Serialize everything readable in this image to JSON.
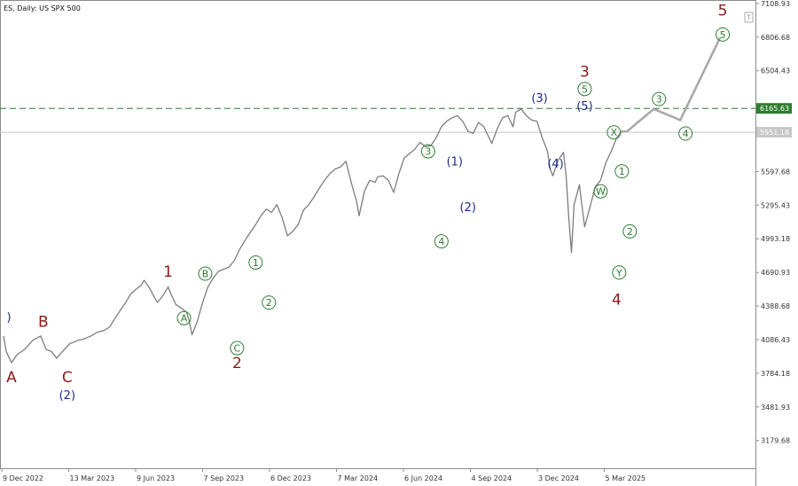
{
  "header": {
    "symbol_title": "ES, Daily:  US SPX 500"
  },
  "chart_data": {
    "type": "line",
    "title": "ES, Daily:  US SPX 500",
    "ylim": [
      2930,
      7140
    ],
    "x_ticks": [
      "9 Dec 2022",
      "13 Mar 2023",
      "9 Jun 2023",
      "7 Sep 2023",
      "6 Dec 2023",
      "7 Mar 2024",
      "6 Jun 2024",
      "4 Sep 2024",
      "3 Dec 2024",
      "5 Mar 2025"
    ],
    "y_ticks": [
      3179.68,
      3481.93,
      3784.18,
      4086.43,
      4388.68,
      4690.93,
      4993.18,
      5295.43,
      5597.68,
      6504.43,
      6806.68,
      7108.93
    ],
    "price_series": [
      [
        0,
        4120
      ],
      [
        1,
        3980
      ],
      [
        3,
        3880
      ],
      [
        5,
        3950
      ],
      [
        8,
        4000
      ],
      [
        11,
        4080
      ],
      [
        14,
        4120
      ],
      [
        16,
        4000
      ],
      [
        18,
        3980
      ],
      [
        20,
        3920
      ],
      [
        23,
        4000
      ],
      [
        25,
        4050
      ],
      [
        28,
        4080
      ],
      [
        30,
        4090
      ],
      [
        33,
        4120
      ],
      [
        35,
        4150
      ],
      [
        38,
        4170
      ],
      [
        40,
        4200
      ],
      [
        42,
        4280
      ],
      [
        44,
        4350
      ],
      [
        46,
        4420
      ],
      [
        48,
        4500
      ],
      [
        50,
        4540
      ],
      [
        52,
        4580
      ],
      [
        53,
        4620
      ],
      [
        55,
        4550
      ],
      [
        57,
        4460
      ],
      [
        58,
        4420
      ],
      [
        60,
        4480
      ],
      [
        62,
        4560
      ],
      [
        63,
        4500
      ],
      [
        65,
        4400
      ],
      [
        67,
        4370
      ],
      [
        69,
        4330
      ],
      [
        70,
        4250
      ],
      [
        71,
        4130
      ],
      [
        73,
        4250
      ],
      [
        75,
        4420
      ],
      [
        77,
        4560
      ],
      [
        79,
        4640
      ],
      [
        81,
        4700
      ],
      [
        83,
        4720
      ],
      [
        85,
        4740
      ],
      [
        87,
        4800
      ],
      [
        89,
        4900
      ],
      [
        91,
        4980
      ],
      [
        93,
        5050
      ],
      [
        95,
        5120
      ],
      [
        97,
        5200
      ],
      [
        99,
        5260
      ],
      [
        101,
        5230
      ],
      [
        103,
        5300
      ],
      [
        105,
        5180
      ],
      [
        107,
        5020
      ],
      [
        109,
        5060
      ],
      [
        111,
        5120
      ],
      [
        113,
        5250
      ],
      [
        115,
        5300
      ],
      [
        117,
        5370
      ],
      [
        119,
        5450
      ],
      [
        121,
        5520
      ],
      [
        123,
        5580
      ],
      [
        125,
        5620
      ],
      [
        127,
        5640
      ],
      [
        129,
        5690
      ],
      [
        131,
        5500
      ],
      [
        133,
        5330
      ],
      [
        134,
        5200
      ],
      [
        136,
        5420
      ],
      [
        138,
        5520
      ],
      [
        140,
        5500
      ],
      [
        141,
        5550
      ],
      [
        143,
        5560
      ],
      [
        145,
        5520
      ],
      [
        147,
        5410
      ],
      [
        149,
        5580
      ],
      [
        151,
        5720
      ],
      [
        153,
        5760
      ],
      [
        155,
        5800
      ],
      [
        157,
        5860
      ],
      [
        159,
        5820
      ],
      [
        161,
        5830
      ],
      [
        163,
        5900
      ],
      [
        165,
        6000
      ],
      [
        167,
        6050
      ],
      [
        169,
        6080
      ],
      [
        171,
        6100
      ],
      [
        173,
        6050
      ],
      [
        175,
        5960
      ],
      [
        177,
        5940
      ],
      [
        179,
        6040
      ],
      [
        181,
        6000
      ],
      [
        183,
        5900
      ],
      [
        184,
        5850
      ],
      [
        186,
        5980
      ],
      [
        188,
        6080
      ],
      [
        190,
        6100
      ],
      [
        192,
        6000
      ],
      [
        193,
        6130
      ],
      [
        195,
        6160
      ],
      [
        197,
        6100
      ],
      [
        199,
        6060
      ],
      [
        201,
        6050
      ],
      [
        203,
        5900
      ],
      [
        205,
        5780
      ],
      [
        206,
        5620
      ],
      [
        207,
        5560
      ],
      [
        209,
        5700
      ],
      [
        211,
        5770
      ],
      [
        212,
        5560
      ],
      [
        213,
        5180
      ],
      [
        214,
        4870
      ],
      [
        215,
        5300
      ],
      [
        217,
        5480
      ],
      [
        218,
        5280
      ],
      [
        219,
        5100
      ],
      [
        221,
        5280
      ],
      [
        223,
        5460
      ],
      [
        225,
        5520
      ],
      [
        227,
        5680
      ],
      [
        229,
        5780
      ],
      [
        231,
        5900
      ],
      [
        233,
        5960
      ],
      [
        235,
        5960
      ]
    ],
    "forecast_path": [
      [
        235,
        5960
      ],
      [
        245,
        6160
      ],
      [
        255,
        6060
      ],
      [
        270,
        6800
      ]
    ],
    "horizontal_lines": [
      {
        "price": 6165.63,
        "label": "6165.63",
        "style": "dashed",
        "color": "#2e7d32"
      },
      {
        "price": 5951.18,
        "label": "5951.18",
        "style": "solid",
        "color": "#c8c8c8"
      }
    ],
    "wave_labels": [
      {
        "text": ")",
        "x": 2,
        "y": 4300,
        "color": "#1f2a8a",
        "style": "plain"
      },
      {
        "text": "A",
        "x": 3,
        "y": 3750,
        "color": "#8b1a1a",
        "style": "plain"
      },
      {
        "text": "B",
        "x": 15,
        "y": 4250,
        "color": "#8b1a1a",
        "style": "plain"
      },
      {
        "text": "C",
        "x": 24,
        "y": 3750,
        "color": "#8b1a1a",
        "style": "plain"
      },
      {
        "text": "(2)",
        "x": 24,
        "y": 3600,
        "color": "#1f2a8a",
        "style": "plain"
      },
      {
        "text": "1",
        "x": 62,
        "y": 4700,
        "color": "#8b1a1a",
        "style": "plain"
      },
      {
        "text": "A",
        "x": 68,
        "y": 4280,
        "color": "#2e7d32",
        "style": "circle"
      },
      {
        "text": "B",
        "x": 76,
        "y": 4680,
        "color": "#2e7d32",
        "style": "circle"
      },
      {
        "text": "C",
        "x": 88,
        "y": 4010,
        "color": "#2e7d32",
        "style": "circle"
      },
      {
        "text": "2",
        "x": 88,
        "y": 3880,
        "color": "#8b1a1a",
        "style": "plain"
      },
      {
        "text": "1",
        "x": 95,
        "y": 4780,
        "color": "#2e7d32",
        "style": "circle"
      },
      {
        "text": "2",
        "x": 100,
        "y": 4420,
        "color": "#2e7d32",
        "style": "circle"
      },
      {
        "text": "3",
        "x": 160,
        "y": 5780,
        "color": "#2e7d32",
        "style": "circle"
      },
      {
        "text": "(1)",
        "x": 170,
        "y": 5700,
        "color": "#1f2a8a",
        "style": "plain"
      },
      {
        "text": "(2)",
        "x": 175,
        "y": 5290,
        "color": "#1f2a8a",
        "style": "plain"
      },
      {
        "text": "4",
        "x": 165,
        "y": 4970,
        "color": "#2e7d32",
        "style": "circle"
      },
      {
        "text": "(3)",
        "x": 202,
        "y": 6270,
        "color": "#1f2a8a",
        "style": "plain"
      },
      {
        "text": "3",
        "x": 219,
        "y": 6500,
        "color": "#8b1a1a",
        "style": "plain"
      },
      {
        "text": "5",
        "x": 219,
        "y": 6340,
        "color": "#2e7d32",
        "style": "circle"
      },
      {
        "text": "(5)",
        "x": 219,
        "y": 6200,
        "color": "#1f2a8a",
        "style": "plain"
      },
      {
        "text": "(4)",
        "x": 208,
        "y": 5680,
        "color": "#1f2a8a",
        "style": "plain"
      },
      {
        "text": "X",
        "x": 230,
        "y": 5950,
        "color": "#2e7d32",
        "style": "circle"
      },
      {
        "text": "1",
        "x": 233,
        "y": 5600,
        "color": "#2e7d32",
        "style": "circle"
      },
      {
        "text": "W",
        "x": 225,
        "y": 5420,
        "color": "#2e7d32",
        "style": "circle"
      },
      {
        "text": "2",
        "x": 236,
        "y": 5060,
        "color": "#2e7d32",
        "style": "circle"
      },
      {
        "text": "Y",
        "x": 232,
        "y": 4690,
        "color": "#2e7d32",
        "style": "circle"
      },
      {
        "text": "4",
        "x": 231,
        "y": 4450,
        "color": "#8b1a1a",
        "style": "plain"
      },
      {
        "text": "3",
        "x": 247,
        "y": 6250,
        "color": "#2e7d32",
        "style": "circle"
      },
      {
        "text": "4",
        "x": 257,
        "y": 5940,
        "color": "#2e7d32",
        "style": "circle"
      },
      {
        "text": "5",
        "x": 271,
        "y": 6830,
        "color": "#2e7d32",
        "style": "circle"
      },
      {
        "text": "5",
        "x": 271,
        "y": 7050,
        "color": "#8b1a1a",
        "style": "plain"
      }
    ]
  }
}
